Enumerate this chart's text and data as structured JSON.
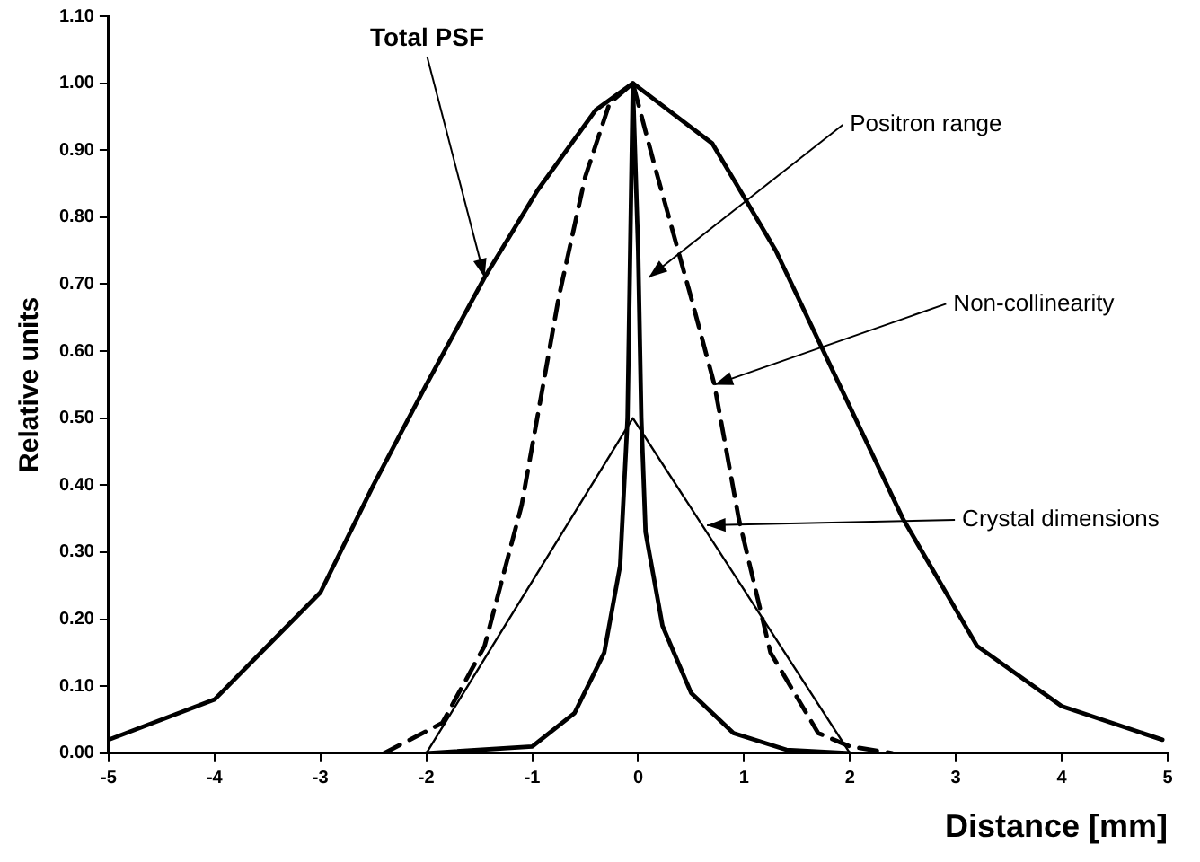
{
  "chart_data": {
    "type": "line",
    "xlabel": "Distance [mm]",
    "ylabel": "Relative units",
    "xlim": [
      -5,
      5
    ],
    "xticks": [
      -5,
      -4,
      -3,
      -2,
      -1,
      0,
      1,
      2,
      3,
      4,
      5
    ],
    "ylim": [
      0,
      1.1
    ],
    "yticks": [
      {
        "value": 0,
        "label": "0.00"
      },
      {
        "value": 0.1,
        "label": "0.10"
      },
      {
        "value": 0.2,
        "label": "0.20"
      },
      {
        "value": 0.3,
        "label": "0.30"
      },
      {
        "value": 0.4,
        "label": "0.40"
      },
      {
        "value": 0.5,
        "label": "0.50"
      },
      {
        "value": 0.6,
        "label": "0.60"
      },
      {
        "value": 0.7,
        "label": "0.70"
      },
      {
        "value": 0.8,
        "label": "0.80"
      },
      {
        "value": 0.9,
        "label": "0.90"
      },
      {
        "value": 1,
        "label": "1.00"
      },
      {
        "value": 1.1,
        "label": "1.10"
      }
    ],
    "grid": false,
    "legend": false,
    "marker": "none",
    "series": [
      {
        "color": "#000000",
        "line_style": "solid",
        "x": [
          -5,
          -4,
          -3,
          -2.5,
          -2,
          -1.45,
          -0.95,
          -0.4,
          -0.05,
          0.7,
          1.3,
          1.9,
          2.5,
          3.2,
          4,
          4.95
        ],
        "values": [
          0.02,
          0.08,
          0.24,
          0.4,
          0.55,
          0.71,
          0.84,
          0.96,
          1,
          0.91,
          0.75,
          0.55,
          0.35,
          0.16,
          0.07,
          0.02
        ]
      },
      {
        "color": "#000000",
        "line_style": "dashed",
        "x": [
          -2.4,
          -1.85,
          -1.45,
          -1.1,
          -0.75,
          -0.5,
          -0.27,
          -0.05,
          0.15,
          0.5,
          0.72,
          0.95,
          1.25,
          1.7,
          2,
          2.4
        ],
        "values": [
          0,
          0.045,
          0.16,
          0.37,
          0.68,
          0.86,
          0.97,
          1,
          0.88,
          0.68,
          0.55,
          0.35,
          0.15,
          0.03,
          0.01,
          0
        ]
      },
      {
        "color": "#000000",
        "line_style": "solid",
        "x": [
          -2,
          -0.05,
          2
        ],
        "values": [
          0,
          0.5,
          0
        ]
      },
      {
        "color": "#000000",
        "line_style": "solid",
        "x": [
          -2,
          -1,
          -0.6,
          -0.32,
          -0.17,
          -0.1,
          -0.07,
          -0.05,
          0,
          0.03,
          0.07,
          0.23,
          0.5,
          0.9,
          1.4,
          2
        ],
        "values": [
          0,
          0.01,
          0.06,
          0.15,
          0.28,
          0.5,
          0.8,
          1,
          0.75,
          0.5,
          0.33,
          0.19,
          0.09,
          0.03,
          0.005,
          0
        ]
      }
    ],
    "annotations": [
      {
        "text": "Total PSF",
        "x": -1.45,
        "y": 0.71
      },
      {
        "text": "Positron range",
        "x": 0.1,
        "y": 0.71
      },
      {
        "text": "Non-collinearity",
        "x": 0.72,
        "y": 0.55
      },
      {
        "text": "Crystal dimensions",
        "x": 0.65,
        "y": 0.34
      }
    ]
  }
}
